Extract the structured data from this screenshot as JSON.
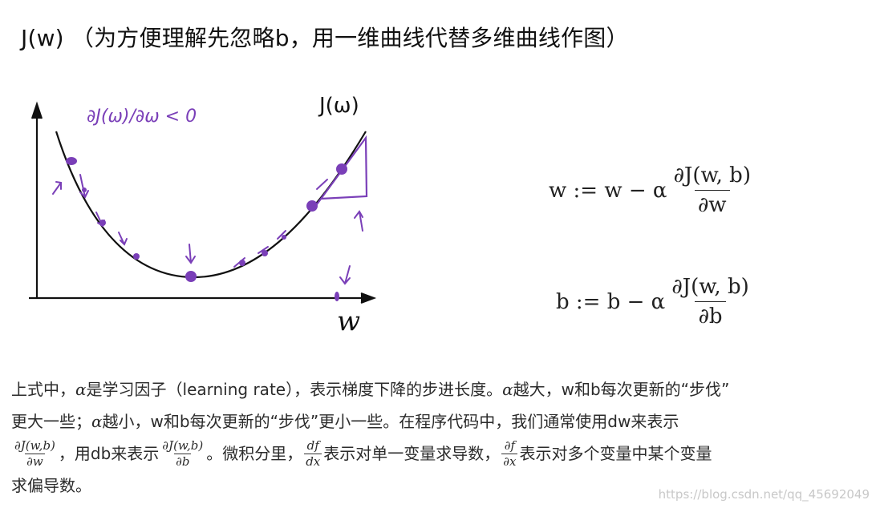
{
  "title": "J(w) （为方便理解先忽略b，用一维曲线代替多维曲线作图）",
  "figure": {
    "derivative_note": "∂J(ω)/∂ω < 0",
    "curve_label": "J(ω)",
    "axis_label": "w",
    "stroke_color": "#111111",
    "annotation_color": "#7a3fb8"
  },
  "equations": {
    "w_update": {
      "lhs": "w := w − α",
      "num": "∂J(w, b)",
      "den": "∂w"
    },
    "b_update": {
      "lhs": "b := b − α",
      "num": "∂J(w, b)",
      "den": "∂b"
    }
  },
  "paragraph": {
    "l1_a": "上式中，",
    "alpha": "α",
    "l1_b": "是学习因子（learning rate），表示梯度下降的步进长度。",
    "l1_c": "越大，w和b每次更新的“步伐”",
    "l2_a": "更大一些；",
    "l2_b": "越小，w和b每次更新的“步伐”更小一些。在程序代码中，我们通常使用dw来表示",
    "f1_num": "∂J(w,b)",
    "f1_den": "∂w",
    "l3_a": "，用db来表示",
    "f2_num": "∂J(w,b)",
    "f2_den": "∂b",
    "l3_b": "。微积分里，",
    "f3_num": "df",
    "f3_den": "dx",
    "l3_c": "表示对单一变量求导数，",
    "f4_num": "∂f",
    "f4_den": "∂x",
    "l3_d": "表示对多个变量中某个变量",
    "l4": "求偏导数。"
  },
  "watermark": "https://blog.csdn.net/qq_45692049"
}
